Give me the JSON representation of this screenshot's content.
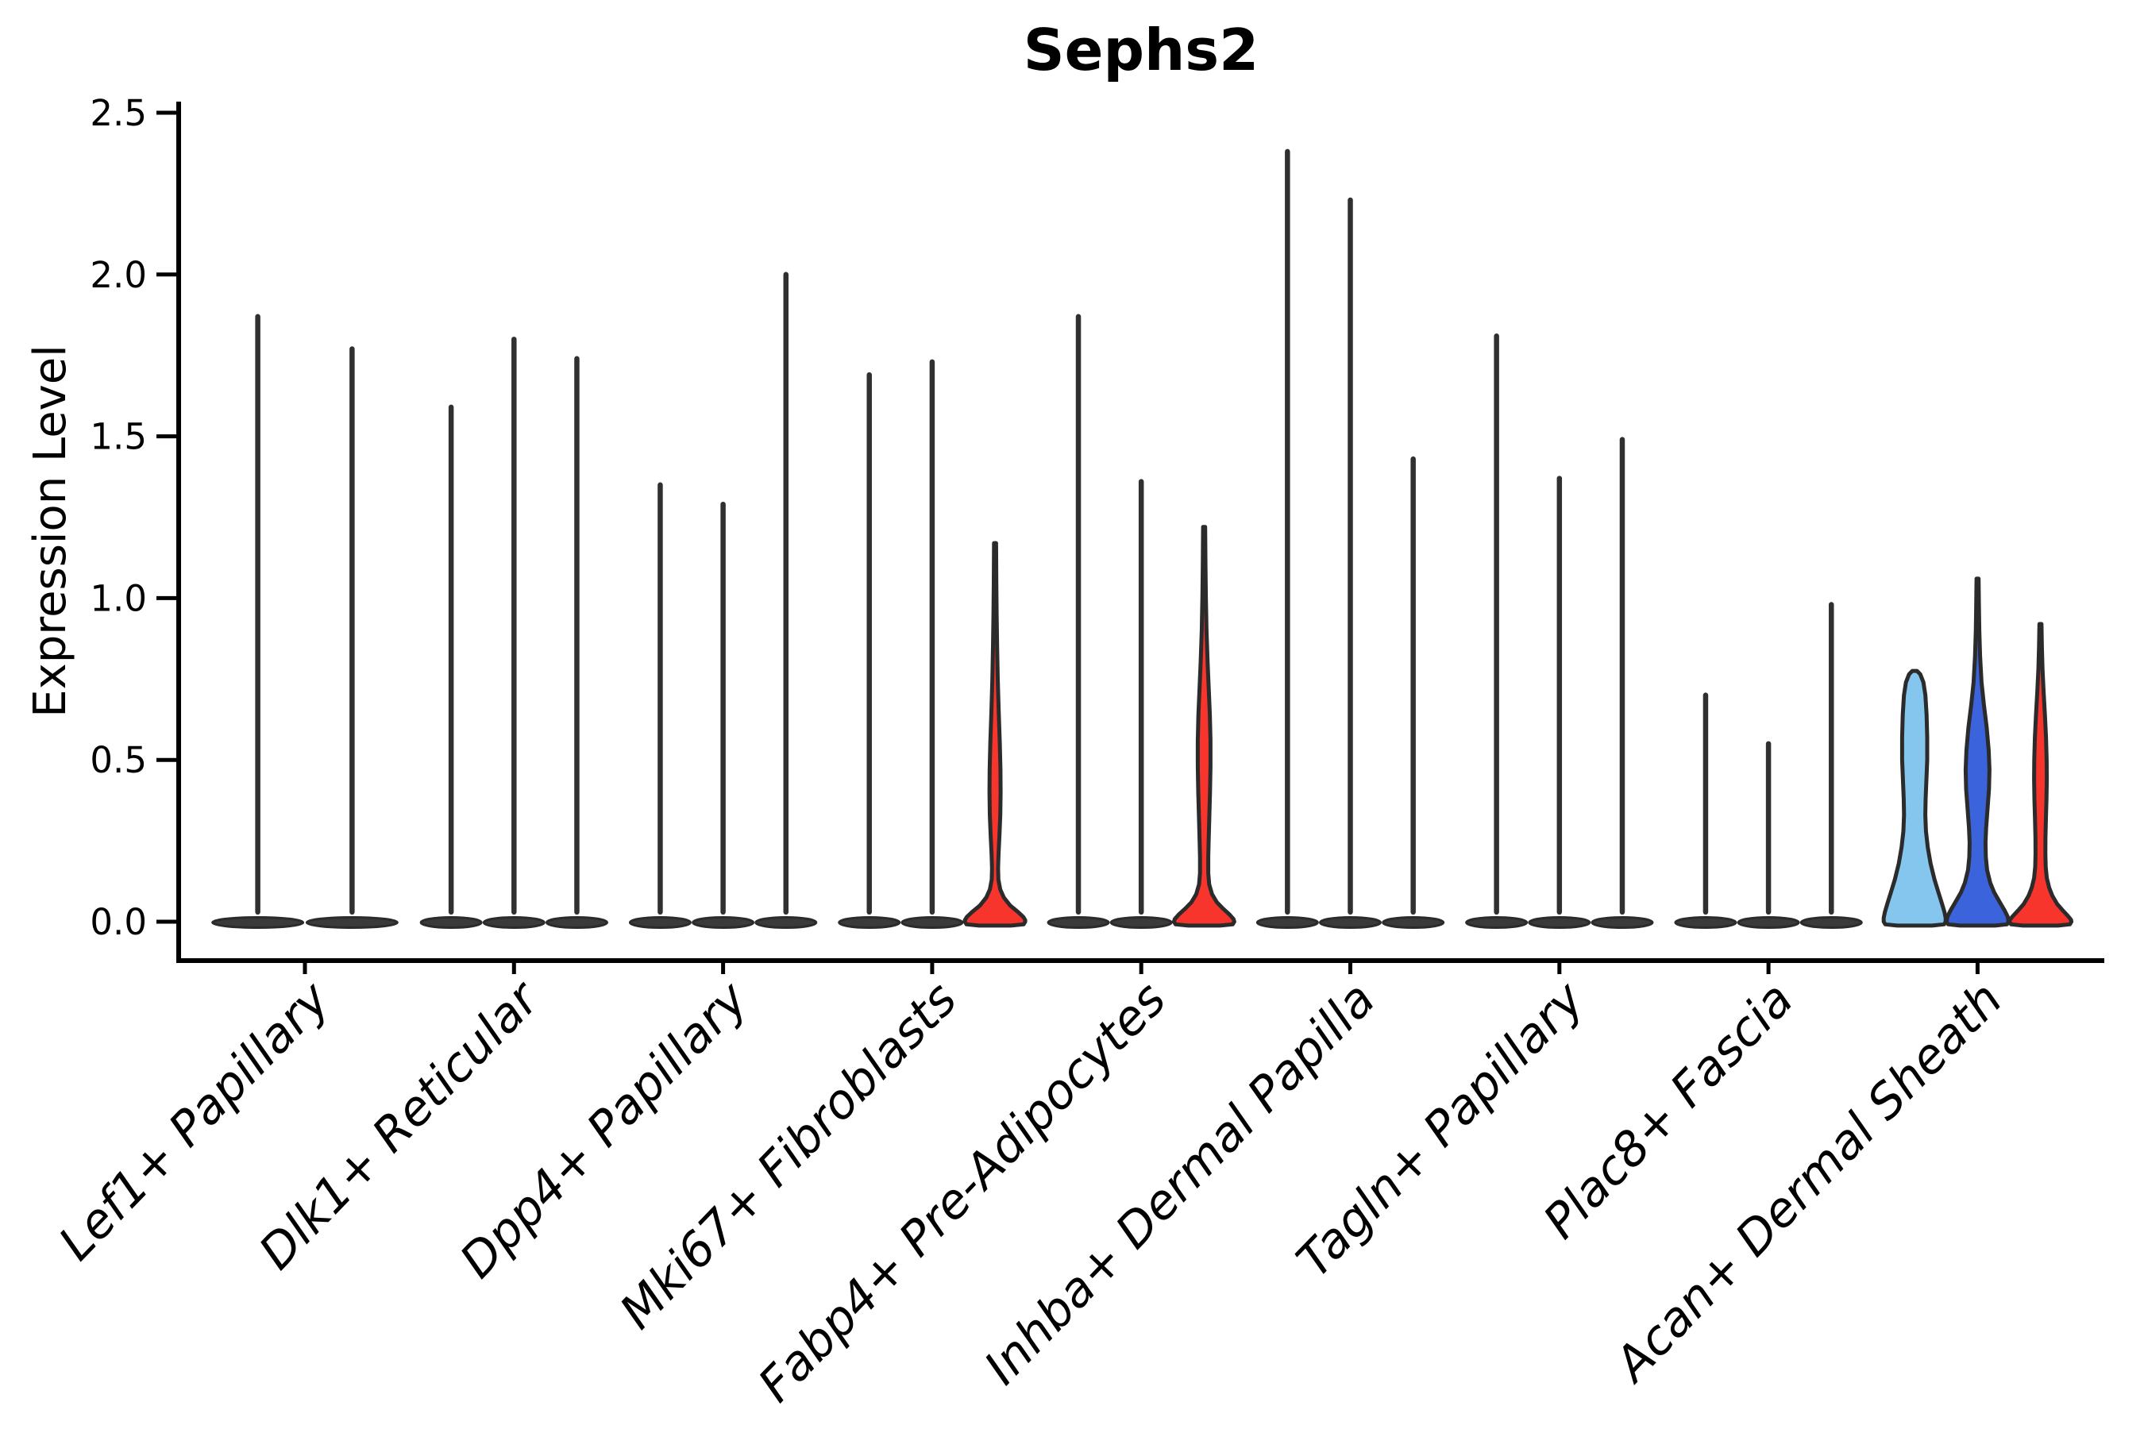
{
  "title": "Sephs2",
  "ylabel": "Expression Level",
  "chart_data": {
    "type": "violin",
    "title": "Sephs2",
    "xlabel": "",
    "ylabel": "Expression Level",
    "ylim": [
      -0.12,
      2.53
    ],
    "yticks": [
      "0.0",
      "0.5",
      "1.0",
      "1.5",
      "2.0",
      "2.5"
    ],
    "ytick_values": [
      0.0,
      0.5,
      1.0,
      1.5,
      2.0,
      2.5
    ],
    "grid": "off",
    "legend": "none",
    "outline_color": "#2b2b2b",
    "spike_color": "#303030",
    "series_colors": [
      "#85C6EE",
      "#3B63DC",
      "#F8352C"
    ],
    "categories": [
      "Lef1+ Papillary",
      "Dlk1+ Reticular",
      "Dpp4+ Papillary",
      "Mki67+ Fibroblasts",
      "Fabp4+ Pre-Adipocytes",
      "Inhba+ Dermal Papilla",
      "Tagln+ Papillary",
      "Plac8+ Fascia",
      "Acan+ Dermal Sheath"
    ],
    "groups": [
      {
        "label": "Lef1+ Papillary",
        "violins": [
          {
            "series": 0,
            "peak": 1.87,
            "shape": "spike"
          },
          {
            "series": 1,
            "peak": 1.77,
            "shape": "spike"
          }
        ]
      },
      {
        "label": "Dlk1+ Reticular",
        "violins": [
          {
            "series": 0,
            "peak": 1.59,
            "shape": "spike"
          },
          {
            "series": 1,
            "peak": 1.8,
            "shape": "spike"
          },
          {
            "series": 2,
            "peak": 1.74,
            "shape": "spike"
          }
        ]
      },
      {
        "label": "Dpp4+ Papillary",
        "violins": [
          {
            "series": 0,
            "peak": 1.35,
            "shape": "spike"
          },
          {
            "series": 1,
            "peak": 1.29,
            "shape": "spike"
          },
          {
            "series": 2,
            "peak": 2.0,
            "shape": "spike"
          }
        ]
      },
      {
        "label": "Mki67+ Fibroblasts",
        "violins": [
          {
            "series": 0,
            "peak": 1.69,
            "shape": "spike"
          },
          {
            "series": 1,
            "peak": 1.73,
            "shape": "spike"
          },
          {
            "series": 2,
            "peak": 1.17,
            "shape": "violin",
            "profile": [
              [
                1.17,
                1.3
              ],
              [
                1.05,
                1.6
              ],
              [
                0.95,
                2.0
              ],
              [
                0.85,
                2.6
              ],
              [
                0.75,
                3.4
              ],
              [
                0.65,
                4.6
              ],
              [
                0.55,
                6.0
              ],
              [
                0.47,
                6.8
              ],
              [
                0.4,
                7.0
              ],
              [
                0.33,
                6.6
              ],
              [
                0.27,
                5.6
              ],
              [
                0.21,
                4.4
              ],
              [
                0.165,
                3.8
              ],
              [
                0.13,
                4.2
              ],
              [
                0.1,
                6.5
              ],
              [
                0.075,
                11
              ],
              [
                0.05,
                19
              ],
              [
                0.03,
                29
              ],
              [
                0.015,
                35.5
              ],
              [
                0.005,
                38
              ],
              [
                0.0,
                38
              ],
              [
                -0.008,
                36
              ],
              [
                -0.012,
                20
              ]
            ]
          }
        ]
      },
      {
        "label": "Fabp4+ Pre-Adipocytes",
        "violins": [
          {
            "series": 0,
            "peak": 1.87,
            "shape": "spike"
          },
          {
            "series": 1,
            "peak": 1.36,
            "shape": "spike"
          },
          {
            "series": 2,
            "peak": 1.22,
            "shape": "violin",
            "profile": [
              [
                1.22,
                1.3
              ],
              [
                1.1,
                1.7
              ],
              [
                1.0,
                2.2
              ],
              [
                0.9,
                3.0
              ],
              [
                0.8,
                4.4
              ],
              [
                0.72,
                5.8
              ],
              [
                0.64,
                7.2
              ],
              [
                0.56,
                8.0
              ],
              [
                0.48,
                8.0
              ],
              [
                0.4,
                7.4
              ],
              [
                0.33,
                6.6
              ],
              [
                0.26,
                5.8
              ],
              [
                0.2,
                5.2
              ],
              [
                0.15,
                5.2
              ],
              [
                0.115,
                6.4
              ],
              [
                0.085,
                10
              ],
              [
                0.06,
                16
              ],
              [
                0.04,
                24
              ],
              [
                0.022,
                32
              ],
              [
                0.008,
                37
              ],
              [
                0.0,
                38
              ],
              [
                -0.008,
                36
              ],
              [
                -0.012,
                20
              ]
            ]
          }
        ]
      },
      {
        "label": "Inhba+ Dermal Papilla",
        "violins": [
          {
            "series": 0,
            "peak": 2.38,
            "shape": "spike"
          },
          {
            "series": 1,
            "peak": 2.23,
            "shape": "spike"
          },
          {
            "series": 2,
            "peak": 1.43,
            "shape": "spike"
          }
        ]
      },
      {
        "label": "Tagln+ Papillary",
        "violins": [
          {
            "series": 0,
            "peak": 1.81,
            "shape": "spike"
          },
          {
            "series": 1,
            "peak": 1.37,
            "shape": "spike"
          },
          {
            "series": 2,
            "peak": 1.49,
            "shape": "spike"
          }
        ]
      },
      {
        "label": "Plac8+ Fascia",
        "violins": [
          {
            "series": 0,
            "peak": 0.7,
            "shape": "spike"
          },
          {
            "series": 1,
            "peak": 0.55,
            "shape": "spike"
          },
          {
            "series": 2,
            "peak": 0.98,
            "shape": "spike"
          }
        ]
      },
      {
        "label": "Acan+ Dermal Sheath",
        "violins": [
          {
            "series": 0,
            "peak": 0.77,
            "shape": "violin",
            "profile": [
              [
                0.775,
                3
              ],
              [
                0.765,
                7
              ],
              [
                0.74,
                11
              ],
              [
                0.7,
                13.5
              ],
              [
                0.64,
                15.0
              ],
              [
                0.57,
                15.8
              ],
              [
                0.5,
                15.8
              ],
              [
                0.44,
                14.8
              ],
              [
                0.38,
                13.8
              ],
              [
                0.33,
                13.4
              ],
              [
                0.28,
                14.2
              ],
              [
                0.23,
                16.5
              ],
              [
                0.18,
                20
              ],
              [
                0.13,
                25
              ],
              [
                0.09,
                30
              ],
              [
                0.055,
                34.5
              ],
              [
                0.03,
                37.5
              ],
              [
                0.012,
                39
              ],
              [
                0.0,
                39
              ],
              [
                -0.008,
                37
              ],
              [
                -0.012,
                22
              ]
            ]
          },
          {
            "series": 1,
            "peak": 1.06,
            "shape": "violin",
            "profile": [
              [
                1.06,
                1.3
              ],
              [
                0.98,
                1.7
              ],
              [
                0.9,
                2.2
              ],
              [
                0.82,
                3.2
              ],
              [
                0.74,
                5.0
              ],
              [
                0.67,
                8.0
              ],
              [
                0.6,
                11.5
              ],
              [
                0.53,
                14.0
              ],
              [
                0.47,
                15.0
              ],
              [
                0.41,
                14.4
              ],
              [
                0.35,
                12.6
              ],
              [
                0.29,
                10.8
              ],
              [
                0.245,
                10.0
              ],
              [
                0.2,
                10.4
              ],
              [
                0.16,
                12.0
              ],
              [
                0.12,
                16
              ],
              [
                0.09,
                21
              ],
              [
                0.06,
                28
              ],
              [
                0.035,
                34
              ],
              [
                0.015,
                38
              ],
              [
                0.0,
                39
              ],
              [
                -0.008,
                37
              ],
              [
                -0.012,
                22
              ]
            ]
          },
          {
            "series": 2,
            "peak": 0.92,
            "shape": "violin",
            "profile": [
              [
                0.92,
                1.3
              ],
              [
                0.85,
                1.8
              ],
              [
                0.78,
                2.6
              ],
              [
                0.71,
                4.0
              ],
              [
                0.64,
                5.6
              ],
              [
                0.57,
                7.0
              ],
              [
                0.5,
                7.8
              ],
              [
                0.44,
                8.0
              ],
              [
                0.38,
                7.6
              ],
              [
                0.32,
                6.9
              ],
              [
                0.26,
                6.3
              ],
              [
                0.21,
                6.2
              ],
              [
                0.17,
                6.6
              ],
              [
                0.135,
                8.0
              ],
              [
                0.105,
                11
              ],
              [
                0.08,
                15
              ],
              [
                0.055,
                21
              ],
              [
                0.035,
                28
              ],
              [
                0.018,
                34.5
              ],
              [
                0.006,
                38.5
              ],
              [
                0.0,
                39
              ],
              [
                -0.008,
                37
              ],
              [
                -0.012,
                22
              ]
            ]
          }
        ]
      }
    ]
  }
}
